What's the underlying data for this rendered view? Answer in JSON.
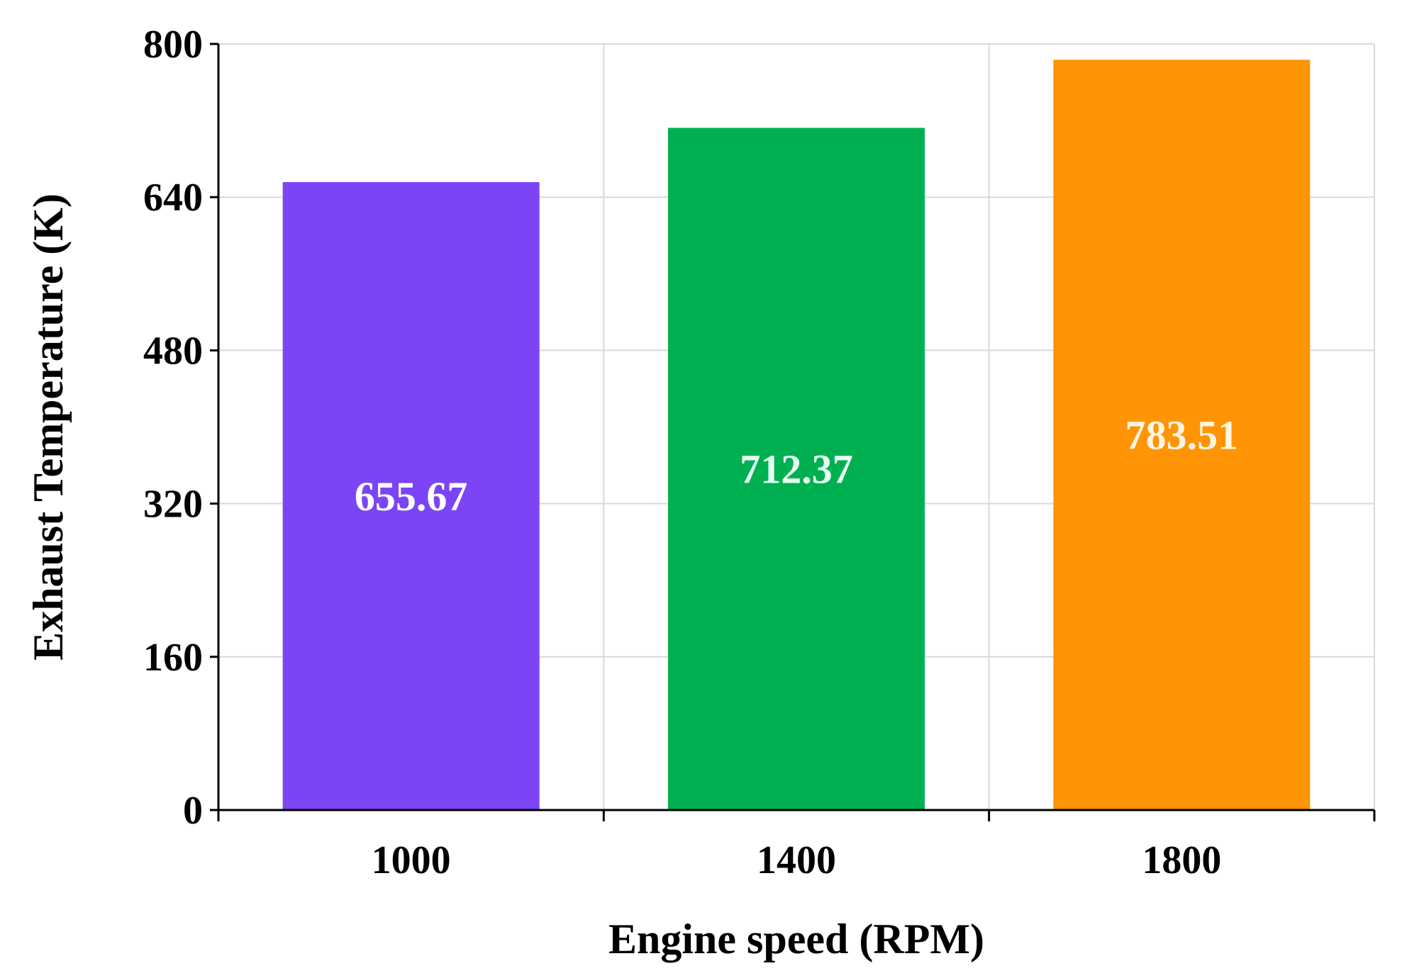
{
  "chart_data": {
    "type": "bar",
    "title": "",
    "xlabel": "Engine speed (RPM)",
    "ylabel": "Exhaust Temperature (K)",
    "categories": [
      "1000",
      "1400",
      "1800"
    ],
    "values": [
      655.67,
      712.37,
      783.51
    ],
    "value_labels": [
      "655.67",
      "712.37",
      "783.51"
    ],
    "bar_colors": [
      "#7b45f5",
      "#00b050",
      "#ff9505"
    ],
    "label_colors": [
      "#ffffff",
      "#e6fff5",
      "#fff5e0"
    ],
    "ylim": [
      0,
      800
    ],
    "yticks": [
      0,
      160,
      320,
      480,
      640,
      800
    ],
    "ytick_labels": [
      "0",
      "160",
      "320",
      "480",
      "640",
      "800"
    ],
    "grid": true,
    "legend": "none"
  }
}
